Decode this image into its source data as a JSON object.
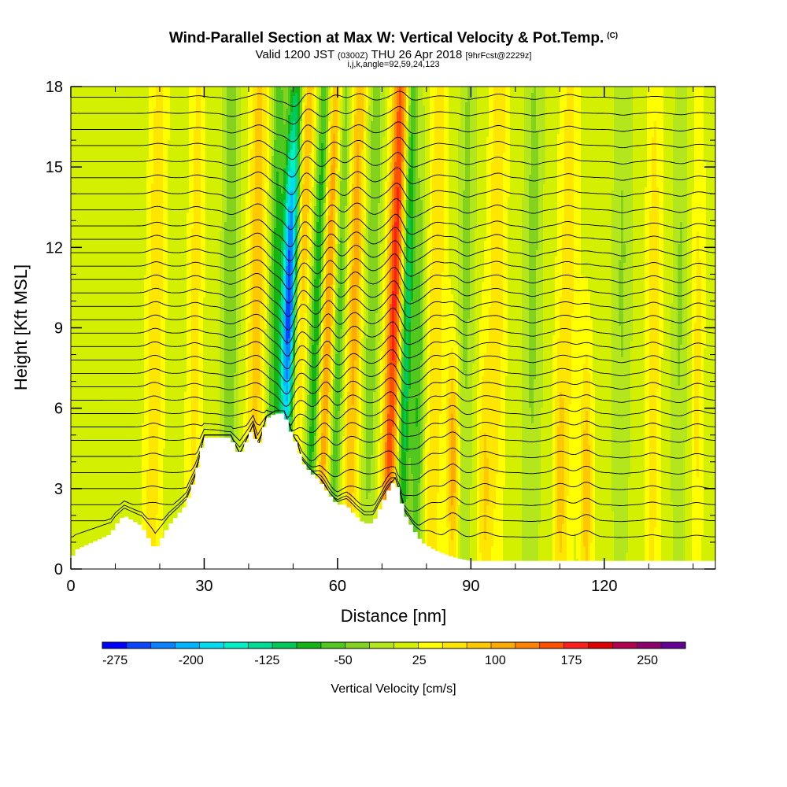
{
  "header": {
    "title": "Wind-Parallel Section at Max W: Vertical Velocity & Pot.Temp.",
    "copyright": "(C)",
    "valid_prefix": "Valid 1200 JST",
    "valid_utc": "(0300Z)",
    "valid_date": "THU 26 Apr 2018",
    "forecast": "[9hrFcst@2229z]",
    "grid_info": "i,j,k,angle=92,59,24,123"
  },
  "chart_data": {
    "type": "heatmap",
    "xlabel": "Distance [nm]",
    "ylabel": "Height [Kft MSL]",
    "xlim": [
      0,
      145
    ],
    "ylim": [
      0,
      18
    ],
    "x_ticks": [
      0,
      30,
      60,
      90,
      120
    ],
    "x_tick_labels": [
      "0",
      "30",
      "60",
      "90",
      "120"
    ],
    "y_ticks": [
      0,
      3,
      6,
      9,
      12,
      15,
      18
    ],
    "y_tick_labels": [
      "0",
      "3",
      "6",
      "9",
      "12",
      "15",
      "18"
    ],
    "background_value_cm_s": 25,
    "terrain_profile": {
      "x_nm": [
        0,
        1,
        5,
        9,
        10,
        12,
        16,
        18,
        19,
        20,
        22,
        26,
        28,
        30,
        32,
        34,
        36,
        38,
        40,
        41,
        42,
        44,
        46,
        48,
        50,
        51,
        52,
        54,
        56,
        58,
        60,
        62,
        64,
        66,
        68,
        70,
        72,
        73,
        74,
        75,
        77,
        79,
        82,
        85,
        87,
        90,
        100,
        110,
        120,
        130,
        145
      ],
      "height_kft": [
        0.3,
        0.7,
        1.0,
        1.3,
        1.6,
        2.0,
        1.6,
        1.0,
        0.7,
        1.0,
        1.6,
        2.4,
        3.4,
        4.9,
        4.9,
        4.9,
        4.9,
        4.2,
        4.9,
        5.3,
        4.4,
        5.6,
        5.8,
        5.8,
        4.9,
        4.6,
        4.0,
        3.6,
        3.3,
        2.8,
        2.4,
        2.4,
        2.0,
        1.7,
        1.7,
        2.4,
        3.1,
        3.3,
        2.8,
        2.1,
        1.5,
        1.0,
        0.7,
        0.5,
        0.4,
        0.3,
        0.3,
        0.3,
        0.3,
        0.3,
        0.3
      ]
    },
    "velocity_features": [
      {
        "x_nm": 19,
        "y_kft": 9,
        "value_cm_s": 60,
        "x_spread": 1.4,
        "y_spread": 12,
        "tilt": 0.1
      },
      {
        "x_nm": 28,
        "y_kft": 10,
        "value_cm_s": 50,
        "x_spread": 1.2,
        "y_spread": 12,
        "tilt": 0.08
      },
      {
        "x_nm": 36,
        "y_kft": 12,
        "value_cm_s": -60,
        "x_spread": 1.3,
        "y_spread": 12,
        "tilt": 0.05
      },
      {
        "x_nm": 42,
        "y_kft": 12,
        "value_cm_s": 80,
        "x_spread": 1.4,
        "y_spread": 11,
        "tilt": 0.08
      },
      {
        "x_nm": 46,
        "y_kft": 11,
        "value_cm_s": -90,
        "x_spread": 1.0,
        "y_spread": 10,
        "tilt": 0.12
      },
      {
        "x_nm": 49,
        "y_kft": 10,
        "value_cm_s": -250,
        "x_spread": 1.2,
        "y_spread": 5,
        "tilt": 0.14
      },
      {
        "x_nm": 50.5,
        "y_kft": 11,
        "value_cm_s": -150,
        "x_spread": 1.2,
        "y_spread": 14,
        "tilt": 0.2
      },
      {
        "x_nm": 51.5,
        "y_kft": 12,
        "value_cm_s": 175,
        "x_spread": 1.3,
        "y_spread": 12,
        "tilt": 0.24
      },
      {
        "x_nm": 55.5,
        "y_kft": 10,
        "value_cm_s": -120,
        "x_spread": 1.0,
        "y_spread": 10,
        "tilt": 0.22
      },
      {
        "x_nm": 58,
        "y_kft": 10,
        "value_cm_s": 120,
        "x_spread": 1.2,
        "y_spread": 10,
        "tilt": 0.2
      },
      {
        "x_nm": 60,
        "y_kft": 8,
        "value_cm_s": -90,
        "x_spread": 1.0,
        "y_spread": 10,
        "tilt": 0.18
      },
      {
        "x_nm": 64,
        "y_kft": 11,
        "value_cm_s": 100,
        "x_spread": 1.2,
        "y_spread": 10,
        "tilt": 0.14
      },
      {
        "x_nm": 68,
        "y_kft": 12,
        "value_cm_s": -60,
        "x_spread": 1.2,
        "y_spread": 10,
        "tilt": 0.12
      },
      {
        "x_nm": 73,
        "y_kft": 11,
        "value_cm_s": 170,
        "x_spread": 1.3,
        "y_spread": 12,
        "tilt": 0.18
      },
      {
        "x_nm": 75.5,
        "y_kft": 9,
        "value_cm_s": -140,
        "x_spread": 0.9,
        "y_spread": 9,
        "tilt": 0.15
      },
      {
        "x_nm": 78,
        "y_kft": 6,
        "value_cm_s": -90,
        "x_spread": 1.1,
        "y_spread": 6,
        "tilt": 0.1
      },
      {
        "x_nm": 82,
        "y_kft": 9,
        "value_cm_s": 60,
        "x_spread": 1.5,
        "y_spread": 11,
        "tilt": 0.1
      },
      {
        "x_nm": 86,
        "y_kft": 4,
        "value_cm_s": 110,
        "x_spread": 1.0,
        "y_spread": 3,
        "tilt": 0.0
      },
      {
        "x_nm": 89,
        "y_kft": 12,
        "value_cm_s": -45,
        "x_spread": 1.3,
        "y_spread": 11,
        "tilt": 0.08
      },
      {
        "x_nm": 93,
        "y_kft": 3,
        "value_cm_s": 60,
        "x_spread": 1.0,
        "y_spread": 4,
        "tilt": 0.0
      },
      {
        "x_nm": 96,
        "y_kft": 13,
        "value_cm_s": 60,
        "x_spread": 1.4,
        "y_spread": 10,
        "tilt": 0.06
      },
      {
        "x_nm": 104,
        "y_kft": 12,
        "value_cm_s": -45,
        "x_spread": 1.5,
        "y_spread": 11,
        "tilt": 0.05
      },
      {
        "x_nm": 110,
        "y_kft": 3,
        "value_cm_s": 60,
        "x_spread": 1.0,
        "y_spread": 4,
        "tilt": 0.0
      },
      {
        "x_nm": 116,
        "y_kft": 3,
        "value_cm_s": 80,
        "x_spread": 1.0,
        "y_spread": 4,
        "tilt": 0.0
      },
      {
        "x_nm": 112,
        "y_kft": 13,
        "value_cm_s": 50,
        "x_spread": 1.5,
        "y_spread": 9,
        "tilt": 0.04
      },
      {
        "x_nm": 124,
        "y_kft": 11,
        "value_cm_s": -40,
        "x_spread": 1.5,
        "y_spread": 9,
        "tilt": 0.04
      },
      {
        "x_nm": 131,
        "y_kft": 8,
        "value_cm_s": 55,
        "x_spread": 1.2,
        "y_spread": 10,
        "tilt": 0.04
      },
      {
        "x_nm": 137,
        "y_kft": 10,
        "value_cm_s": -40,
        "x_spread": 1.2,
        "y_spread": 9,
        "tilt": 0.04
      },
      {
        "x_nm": 141,
        "y_kft": 8,
        "value_cm_s": 45,
        "x_spread": 1.0,
        "y_spread": 8,
        "tilt": 0.04
      }
    ],
    "theta_contour_base_heights_kft": [
      1.2,
      1.8,
      2.4,
      3.0,
      3.6,
      4.2,
      4.8,
      5.3,
      5.8,
      6.3,
      6.8,
      7.3,
      7.8,
      8.3,
      8.8,
      9.3,
      9.8,
      10.3,
      10.8,
      11.3,
      11.8,
      12.3,
      12.8,
      13.4,
      14.0,
      14.6,
      15.2,
      15.8,
      16.4,
      17.0,
      17.6
    ]
  },
  "colorbar": {
    "tick_labels": [
      "-275",
      "-200",
      "-125",
      "-50",
      "25",
      "100",
      "175",
      "250"
    ],
    "tick_values": [
      -275,
      -200,
      -125,
      -50,
      25,
      100,
      175,
      250
    ],
    "range": [
      -287.5,
      287.5
    ],
    "bins": 23,
    "title": "Vertical Velocity [cm/s]",
    "colors": [
      "#0000ff",
      "#0a46ff",
      "#0a82ff",
      "#00b4ff",
      "#00dcf0",
      "#00f0c8",
      "#00dc96",
      "#00c85a",
      "#14b414",
      "#50c81e",
      "#82d21e",
      "#b4e61e",
      "#d2f000",
      "#ffff00",
      "#ffe600",
      "#ffc800",
      "#ffaa00",
      "#ff8200",
      "#ff5000",
      "#ff1e1e",
      "#dc0000",
      "#b40050",
      "#8c006e",
      "#640096"
    ]
  }
}
